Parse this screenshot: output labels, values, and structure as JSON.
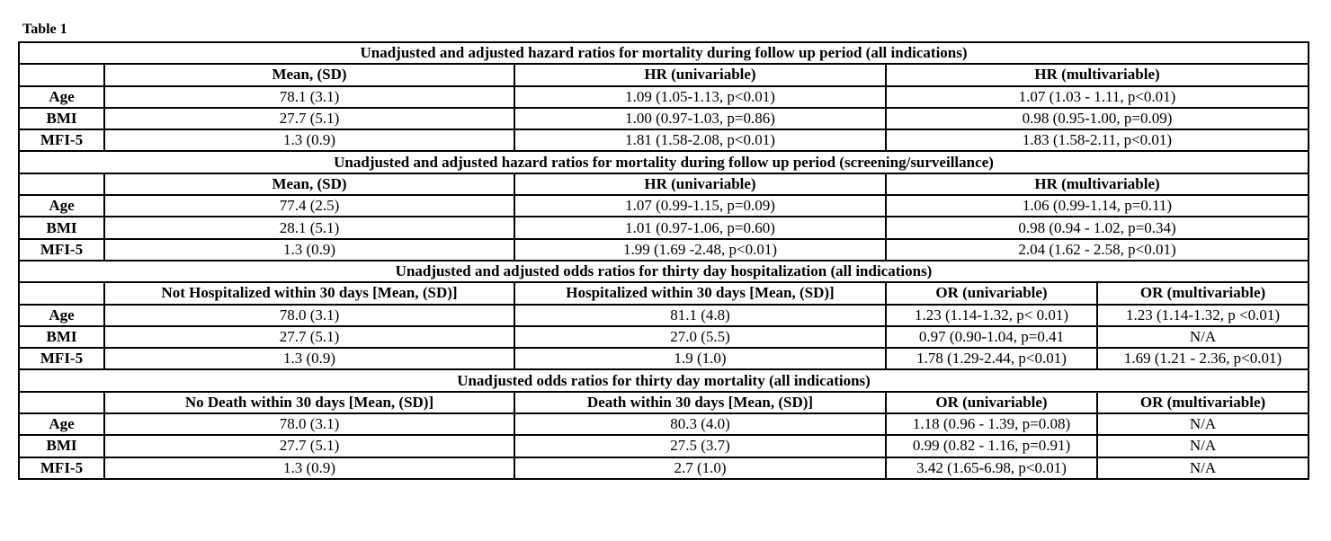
{
  "table_title": "Table 1",
  "sections": {
    "s1": {
      "title": "Unadjusted and adjusted hazard ratios for mortality during follow up period (all indications)",
      "headers": [
        "Mean, (SD)",
        "HR (univariable)",
        "HR (multivariable)"
      ],
      "rows": [
        {
          "label": "Age",
          "cells": [
            "78.1 (3.1)",
            "1.09 (1.05-1.13, p<0.01)",
            "1.07 (1.03 - 1.11, p<0.01)"
          ]
        },
        {
          "label": "BMI",
          "cells": [
            "27.7 (5.1)",
            "1.00 (0.97-1.03, p=0.86)",
            "0.98 (0.95-1.00, p=0.09)"
          ]
        },
        {
          "label": "MFI-5",
          "cells": [
            "1.3 (0.9)",
            "1.81 (1.58-2.08, p<0.01)",
            "1.83 (1.58-2.11, p<0.01)"
          ]
        }
      ]
    },
    "s2": {
      "title": "Unadjusted and adjusted hazard ratios for mortality during follow up period (screening/surveillance)",
      "headers": [
        "Mean, (SD)",
        "HR (univariable)",
        "HR (multivariable)"
      ],
      "rows": [
        {
          "label": "Age",
          "cells": [
            "77.4 (2.5)",
            "1.07 (0.99-1.15, p=0.09)",
            "1.06 (0.99-1.14, p=0.11)"
          ]
        },
        {
          "label": "BMI",
          "cells": [
            "28.1 (5.1)",
            "1.01 (0.97-1.06, p=0.60)",
            "0.98 (0.94 - 1.02, p=0.34)"
          ]
        },
        {
          "label": "MFI-5",
          "cells": [
            "1.3 (0.9)",
            "1.99 (1.69 -2.48, p<0.01)",
            "2.04 (1.62 - 2.58, p<0.01)"
          ]
        }
      ]
    },
    "s3": {
      "title": "Unadjusted and adjusted odds ratios for thirty day hospitalization (all indications)",
      "headers": [
        "Not Hospitalized within 30 days [Mean, (SD)]",
        "Hospitalized within 30 days [Mean, (SD)]",
        "OR (univariable)",
        "OR (multivariable)"
      ],
      "rows": [
        {
          "label": "Age",
          "cells": [
            "78.0 (3.1)",
            "81.1 (4.8)",
            "1.23 (1.14-1.32, p< 0.01)",
            "1.23 (1.14-1.32, p <0.01)"
          ]
        },
        {
          "label": "BMI",
          "cells": [
            "27.7 (5.1)",
            "27.0 (5.5)",
            "0.97 (0.90-1.04, p=0.41",
            "N/A"
          ]
        },
        {
          "label": "MFI-5",
          "cells": [
            "1.3 (0.9)",
            "1.9 (1.0)",
            "1.78 (1.29-2.44, p<0.01)",
            "1.69 (1.21 - 2.36, p<0.01)"
          ]
        }
      ]
    },
    "s4": {
      "title": "Unadjusted odds ratios for thirty day mortality (all indications)",
      "headers": [
        "No Death within 30 days [Mean, (SD)]",
        "Death within 30 days [Mean, (SD)]",
        "OR (univariable)",
        "OR (multivariable)"
      ],
      "rows": [
        {
          "label": "Age",
          "cells": [
            "78.0 (3.1)",
            "80.3 (4.0)",
            "1.18 (0.96 - 1.39, p=0.08)",
            "N/A"
          ]
        },
        {
          "label": "BMI",
          "cells": [
            "27.7 (5.1)",
            "27.5 (3.7)",
            "0.99 (0.82 - 1.16, p=0.91)",
            "N/A"
          ]
        },
        {
          "label": "MFI-5",
          "cells": [
            "1.3 (0.9)",
            "2.7 (1.0)",
            "3.42 (1.65-6.98, p<0.01)",
            "N/A"
          ]
        }
      ]
    }
  }
}
